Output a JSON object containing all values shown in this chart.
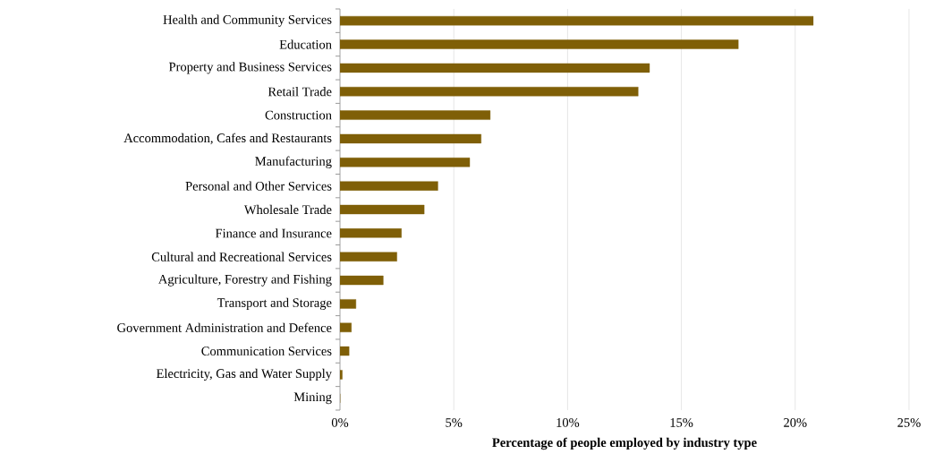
{
  "chart_data": {
    "type": "bar",
    "orientation": "horizontal",
    "xlabel": "Percentage of people employed by industry type",
    "categories": [
      "Health and Community Services",
      "Education",
      "Property and Business Services",
      "Retail Trade",
      "Construction",
      "Accommodation, Cafes and Restaurants",
      "Manufacturing",
      "Personal and Other Services",
      "Wholesale Trade",
      "Finance and Insurance",
      "Cultural and Recreational Services",
      "Agriculture, Forestry and Fishing",
      "Transport and Storage",
      "Government Administration and Defence",
      "Communication Services",
      "Electricity, Gas and Water Supply",
      "Mining"
    ],
    "values": [
      20.8,
      17.5,
      13.6,
      13.1,
      6.6,
      6.2,
      5.7,
      4.3,
      3.7,
      2.7,
      2.5,
      1.9,
      0.7,
      0.5,
      0.4,
      0.1,
      0
    ],
    "color": "#7f5f07",
    "xlim": [
      0,
      25
    ],
    "xticks": [
      {
        "value": 0,
        "label": "0%"
      },
      {
        "value": 5,
        "label": "5%"
      },
      {
        "value": 10,
        "label": "10%"
      },
      {
        "value": 15,
        "label": "15%"
      },
      {
        "value": 20,
        "label": "20%"
      },
      {
        "value": 25,
        "label": "25%"
      }
    ],
    "grid": "x"
  }
}
